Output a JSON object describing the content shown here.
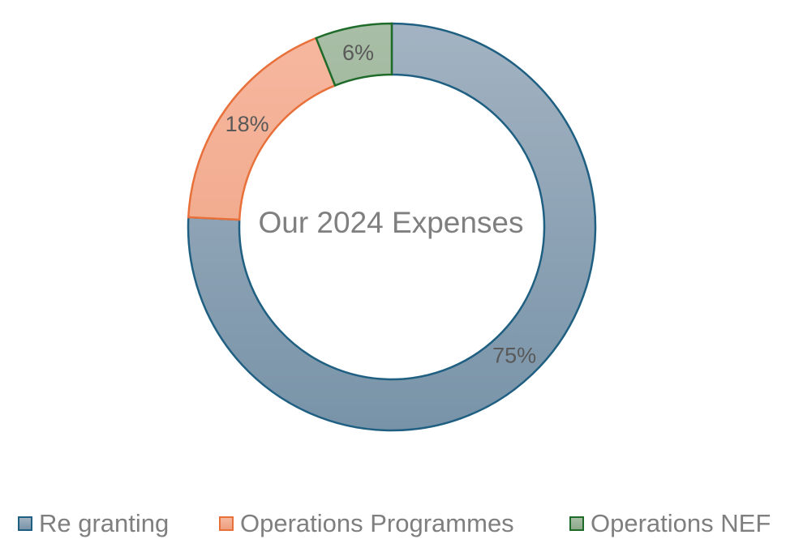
{
  "chart_data": {
    "type": "pie",
    "style": "donut",
    "title": "Our 2024 Expenses",
    "slices": [
      {
        "name": "Re granting",
        "value": 75,
        "label": "75%",
        "fill_top": "#a3b3c2",
        "fill_bottom": "#7893a8",
        "stroke": "#1f5f82"
      },
      {
        "name": "Operations Programmes",
        "value": 18,
        "label": "18%",
        "fill_top": "#f6b8a0",
        "fill_bottom": "#ee9f7e",
        "stroke": "#e8703a"
      },
      {
        "name": "Operations NEF",
        "value": 6,
        "label": "6%",
        "fill_top": "#a8bea6",
        "fill_bottom": "#8daa8a",
        "stroke": "#1f6b2a"
      }
    ],
    "legend_position": "bottom"
  }
}
